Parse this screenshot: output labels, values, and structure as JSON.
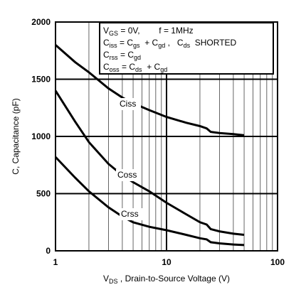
{
  "chart_data": {
    "type": "line",
    "x_label": [
      {
        "text": "V"
      },
      {
        "text": "DS",
        "sub": true
      },
      {
        "text": " , Drain-to-Source Voltage (V)"
      }
    ],
    "y_label": "C, Capacitance (pF)",
    "log_x": true,
    "grid": true,
    "xlim": [
      1,
      100
    ],
    "xticks": [
      1,
      10,
      100
    ],
    "ylim": [
      0,
      2000
    ],
    "yticks": [
      0,
      500,
      1000,
      1500,
      2000
    ],
    "x": [
      1,
      1.5,
      2,
      3,
      4,
      5,
      7,
      10,
      15,
      20,
      23,
      25,
      30,
      40,
      50
    ],
    "series": [
      {
        "name": "Ciss",
        "color": "#000000",
        "values": [
          1800,
          1650,
          1560,
          1420,
          1340,
          1290,
          1230,
          1170,
          1120,
          1090,
          1070,
          1040,
          1030,
          1020,
          1010
        ]
      },
      {
        "name": "Coss",
        "color": "#000000",
        "values": [
          1400,
          1130,
          950,
          760,
          660,
          600,
          520,
          420,
          320,
          250,
          230,
          190,
          170,
          150,
          140
        ]
      },
      {
        "name": "Crss",
        "color": "#000000",
        "values": [
          820,
          640,
          520,
          380,
          300,
          250,
          210,
          180,
          140,
          110,
          100,
          75,
          65,
          55,
          50
        ]
      }
    ],
    "legend_lines": [
      [
        {
          "text": "V"
        },
        {
          "text": "GS",
          "sub": true
        },
        {
          "text": " = 0V,        f = 1MHz"
        }
      ],
      [
        {
          "text": "C"
        },
        {
          "text": "iss",
          "sub": true
        },
        {
          "text": " = C"
        },
        {
          "text": "gs",
          "sub": true
        },
        {
          "text": "  + C"
        },
        {
          "text": "gd",
          "sub": true
        },
        {
          "text": " ,   C"
        },
        {
          "text": "ds",
          "sub": true
        },
        {
          "text": "  SHORTED"
        }
      ],
      [
        {
          "text": "C"
        },
        {
          "text": "rss",
          "sub": true
        },
        {
          "text": " = C"
        },
        {
          "text": "gd",
          "sub": true
        }
      ],
      [
        {
          "text": "C"
        },
        {
          "text": "oss",
          "sub": true
        },
        {
          "text": " = C"
        },
        {
          "text": "ds",
          "sub": true
        },
        {
          "text": "  + C"
        },
        {
          "text": "gd",
          "sub": true
        }
      ]
    ]
  }
}
